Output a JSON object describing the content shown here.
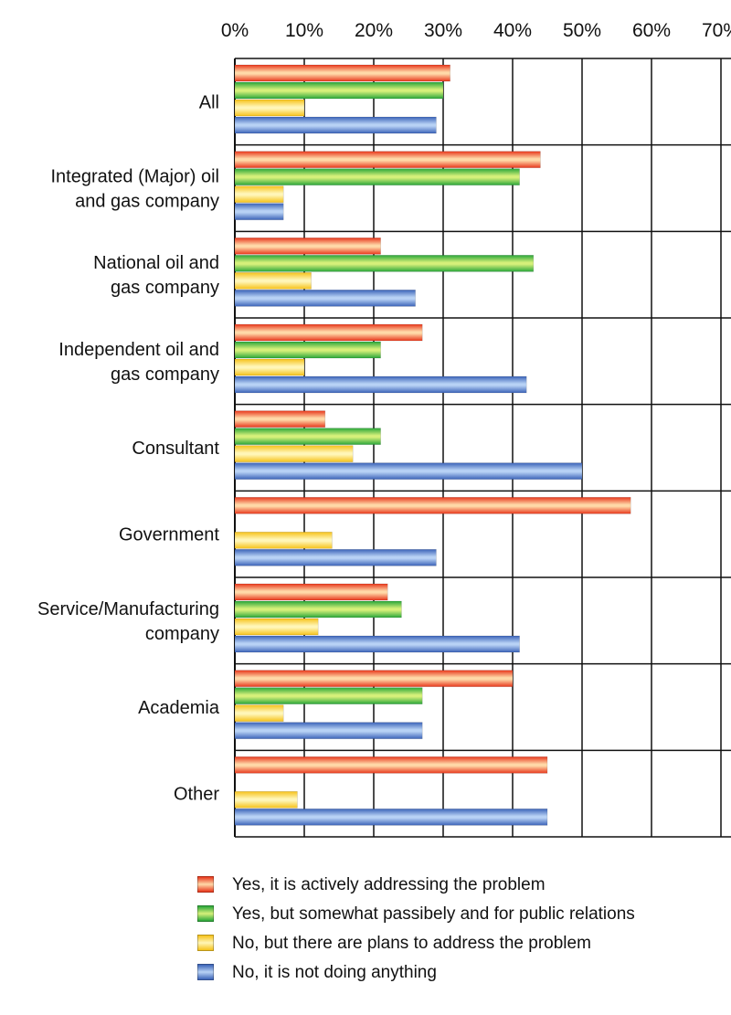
{
  "chart_data": {
    "type": "bar",
    "orientation": "horizontal",
    "x_tick_labels": [
      "0%",
      "10%",
      "20%",
      "30%",
      "40%",
      "50%",
      "60%",
      "70%"
    ],
    "xlim": [
      0,
      70
    ],
    "grid": true,
    "legend_position": "bottom",
    "categories": [
      "All",
      "Integrated (Major) oil and gas company",
      "National oil and gas company",
      "Independent oil and gas company",
      "Consultant",
      "Government",
      "Service/Manufacturing company",
      "Academia",
      "Other"
    ],
    "category_lines": [
      [
        "All"
      ],
      [
        "Integrated (Major) oil",
        "and gas company"
      ],
      [
        "National oil and",
        "gas company"
      ],
      [
        "Independent oil and",
        "gas company"
      ],
      [
        "Consultant"
      ],
      [
        "Government"
      ],
      [
        "Service/Manufacturing",
        "company"
      ],
      [
        "Academia"
      ],
      [
        "Other"
      ]
    ],
    "series": [
      {
        "name": "Yes, it is actively addressing the problem",
        "color": "#e8371c",
        "light": "#ffd9a8",
        "values": [
          31,
          44,
          21,
          27,
          13,
          57,
          22,
          40,
          45
        ]
      },
      {
        "name": "Yes, but somewhat passibely and for public relations",
        "color": "#29a63a",
        "light": "#d6f07a",
        "values": [
          30,
          41,
          43,
          21,
          21,
          0,
          24,
          27,
          0
        ]
      },
      {
        "name": "No, but there are plans to address the problem",
        "color": "#f6c21a",
        "light": "#fff6b8",
        "values": [
          10,
          7,
          11,
          10,
          17,
          14,
          12,
          7,
          9
        ]
      },
      {
        "name": "No, it is not doing anything",
        "color": "#3b63b8",
        "light": "#b8d2f5",
        "values": [
          29,
          7,
          26,
          42,
          50,
          29,
          41,
          27,
          45
        ]
      }
    ]
  }
}
